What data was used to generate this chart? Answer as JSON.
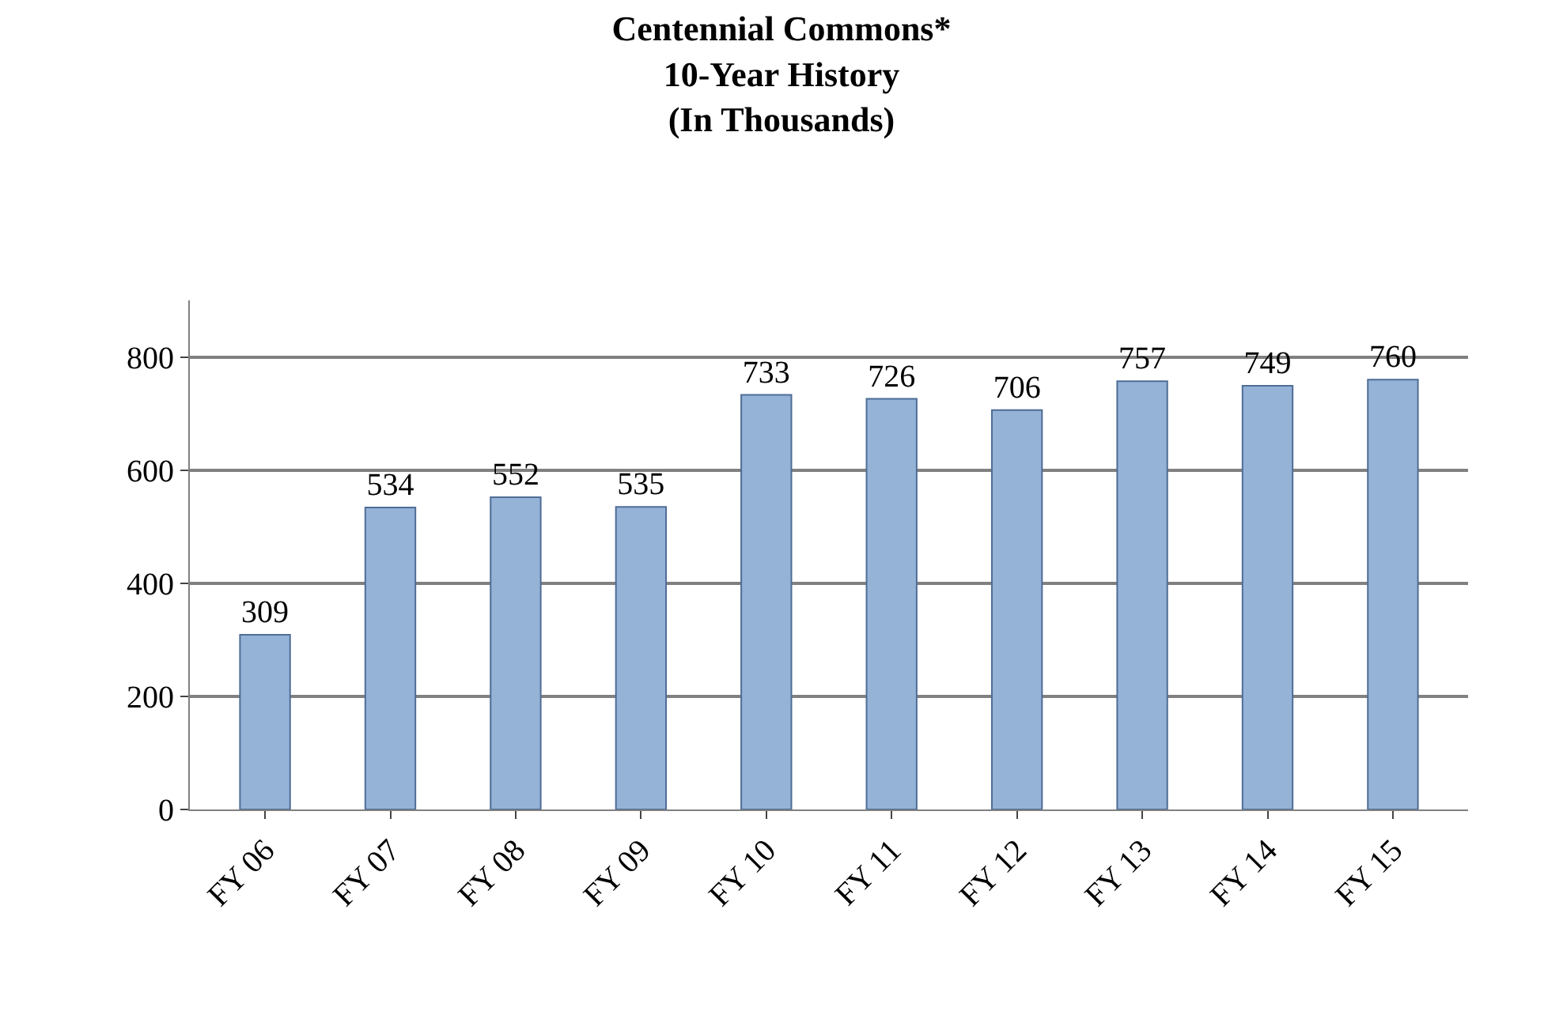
{
  "chart_data": {
    "type": "bar",
    "title": "Centennial Commons*\n10-Year History\n(In Thousands)",
    "categories": [
      "FY 06",
      "FY 07",
      "FY 08",
      "FY 09",
      "FY 10",
      "FY 11",
      "FY 12",
      "FY 13",
      "FY 14",
      "FY 15"
    ],
    "values": [
      309,
      534,
      552,
      535,
      733,
      726,
      706,
      757,
      749,
      760
    ],
    "color": "#95b3d7",
    "ylim": [
      0,
      900
    ],
    "yticks": [
      0,
      200,
      400,
      600,
      800
    ],
    "grid": "y",
    "data_labels": true,
    "legend": false
  }
}
